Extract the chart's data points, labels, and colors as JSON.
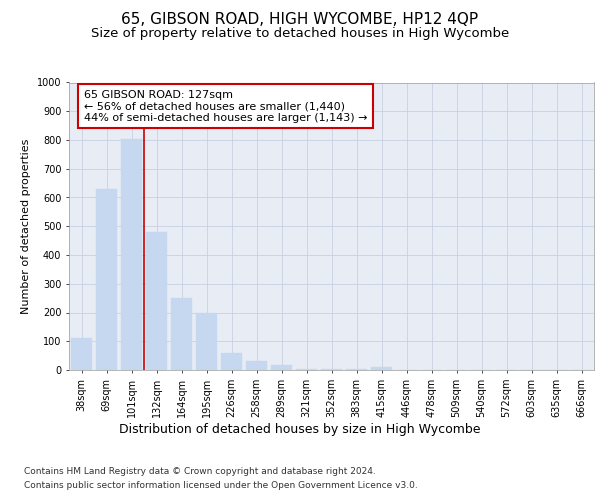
{
  "title": "65, GIBSON ROAD, HIGH WYCOMBE, HP12 4QP",
  "subtitle": "Size of property relative to detached houses in High Wycombe",
  "xlabel": "Distribution of detached houses by size in High Wycombe",
  "ylabel": "Number of detached properties",
  "footer_line1": "Contains HM Land Registry data © Crown copyright and database right 2024.",
  "footer_line2": "Contains public sector information licensed under the Open Government Licence v3.0.",
  "categories": [
    "38sqm",
    "69sqm",
    "101sqm",
    "132sqm",
    "164sqm",
    "195sqm",
    "226sqm",
    "258sqm",
    "289sqm",
    "321sqm",
    "352sqm",
    "383sqm",
    "415sqm",
    "446sqm",
    "478sqm",
    "509sqm",
    "540sqm",
    "572sqm",
    "603sqm",
    "635sqm",
    "666sqm"
  ],
  "values": [
    110,
    630,
    805,
    480,
    250,
    200,
    60,
    30,
    17,
    5,
    5,
    5,
    10,
    0,
    0,
    0,
    0,
    0,
    0,
    0,
    0
  ],
  "bar_color": "#c5d8ef",
  "bar_edge_color": "#c5d8ef",
  "vline_position": 2.5,
  "vline_color": "#cc0000",
  "annotation_line1": "65 GIBSON ROAD: 127sqm",
  "annotation_line2": "← 56% of detached houses are smaller (1,440)",
  "annotation_line3": "44% of semi-detached houses are larger (1,143) →",
  "annotation_box_facecolor": "white",
  "annotation_box_edgecolor": "#cc0000",
  "ylim_min": 0,
  "ylim_max": 1000,
  "yticks": [
    0,
    100,
    200,
    300,
    400,
    500,
    600,
    700,
    800,
    900,
    1000
  ],
  "grid_color": "#c8d0e0",
  "bg_color": "#e8edf5",
  "title_fontsize": 11,
  "subtitle_fontsize": 9.5,
  "ylabel_fontsize": 8,
  "xlabel_fontsize": 9,
  "tick_fontsize": 7,
  "annotation_fontsize": 8,
  "footer_fontsize": 6.5
}
